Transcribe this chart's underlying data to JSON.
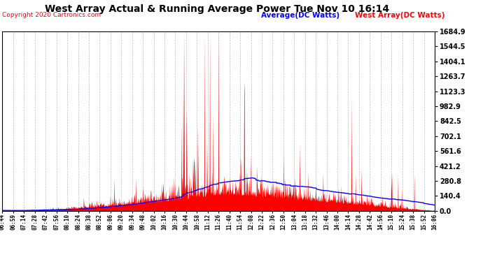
{
  "title": "West Array Actual & Running Average Power Tue Nov 10 16:14",
  "copyright": "Copyright 2020 Cartronics.com",
  "legend_avg": "Average(DC Watts)",
  "legend_west": "West Array(DC Watts)",
  "y_ticks": [
    0.0,
    140.4,
    280.8,
    421.2,
    561.6,
    702.1,
    842.5,
    982.9,
    1123.3,
    1263.7,
    1404.1,
    1544.5,
    1684.9
  ],
  "y_max": 1684.9,
  "x_labels": [
    "06:44",
    "06:59",
    "07:14",
    "07:28",
    "07:42",
    "07:56",
    "08:10",
    "08:24",
    "08:38",
    "08:52",
    "09:06",
    "09:20",
    "09:34",
    "09:48",
    "10:02",
    "10:16",
    "10:30",
    "10:44",
    "10:58",
    "11:12",
    "11:26",
    "11:40",
    "11:54",
    "12:08",
    "12:22",
    "12:36",
    "12:50",
    "13:04",
    "13:18",
    "13:32",
    "13:46",
    "14:00",
    "14:14",
    "14:28",
    "14:42",
    "14:56",
    "15:10",
    "15:24",
    "15:38",
    "15:52",
    "16:06"
  ],
  "bg_color": "#ffffff",
  "plot_bg": "#ffffff",
  "red_color": "#ff0000",
  "blue_color": "#0000ff",
  "grid_color": "#bbbbbb",
  "title_color": "#000000",
  "copyright_color": "#ff0000",
  "avg_label_color": "#0000ff",
  "west_label_color": "#ff0000"
}
